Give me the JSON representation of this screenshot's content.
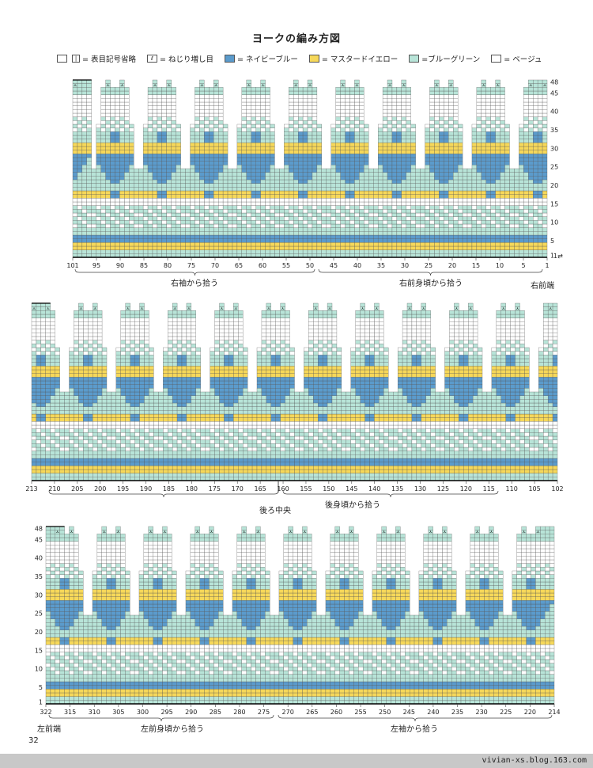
{
  "title": "ヨークの編み方図",
  "legend": {
    "items": [
      {
        "symbol_text": "|",
        "label": "= 表目記号省略",
        "color": "#ffffff"
      },
      {
        "symbol_text": "ℓ",
        "label": "= ねじり増し目",
        "color": "#ffffff"
      },
      {
        "symbol_text": "",
        "label": "= ネイビーブルー",
        "color": "#5b9bcc"
      },
      {
        "symbol_text": "",
        "label": "= マスタードイエロー",
        "color": "#f6d85a"
      },
      {
        "symbol_text": "",
        "label": "=ブルーグリーン",
        "color": "#b8e4d8"
      },
      {
        "symbol_text": "",
        "label": "= ベージュ",
        "color": "#ffffff"
      }
    ]
  },
  "colors": {
    "navy": "#5b9bcc",
    "mustard": "#f6d85a",
    "bluegreen": "#b8e4d8",
    "beige": "#ffffff",
    "grid": "#555555"
  },
  "charts": [
    {
      "id": "top",
      "x_labels": [
        "101",
        "95",
        "90",
        "85",
        "80",
        "75",
        "70",
        "65",
        "60",
        "55",
        "50",
        "45",
        "40",
        "35",
        "30",
        "25",
        "20",
        "15",
        "10",
        "5",
        "1"
      ],
      "y_labels": [
        "48",
        "45",
        "40",
        "35",
        "30",
        "25",
        "20",
        "15",
        "10",
        "5",
        "1"
      ],
      "y_side": "right",
      "row_marker": "1⇄",
      "annotations": [
        "右袖から拾う",
        "右前身頃から拾う",
        "右前端"
      ]
    },
    {
      "id": "middle",
      "x_labels": [
        "213",
        "210",
        "205",
        "200",
        "195",
        "190",
        "185",
        "180",
        "175",
        "170",
        "165",
        "160",
        "155",
        "150",
        "145",
        "140",
        "135",
        "130",
        "125",
        "120",
        "115",
        "110",
        "105",
        "102"
      ],
      "annotations": [
        "後ろ中央",
        "後身頃から拾う"
      ]
    },
    {
      "id": "bottom",
      "x_labels": [
        "322",
        "315",
        "310",
        "305",
        "300",
        "295",
        "290",
        "285",
        "280",
        "275",
        "270",
        "265",
        "260",
        "255",
        "250",
        "245",
        "240",
        "235",
        "230",
        "225",
        "220",
        "214"
      ],
      "y_labels": [
        "48",
        "45",
        "40",
        "35",
        "30",
        "25",
        "20",
        "15",
        "10",
        "5",
        "1"
      ],
      "y_side": "left",
      "annotations": [
        "左前端",
        "左前身頃から拾う",
        "左袖から拾う"
      ]
    }
  ],
  "page_number": "32",
  "watermark": "vivian-xs.blog.163.com"
}
